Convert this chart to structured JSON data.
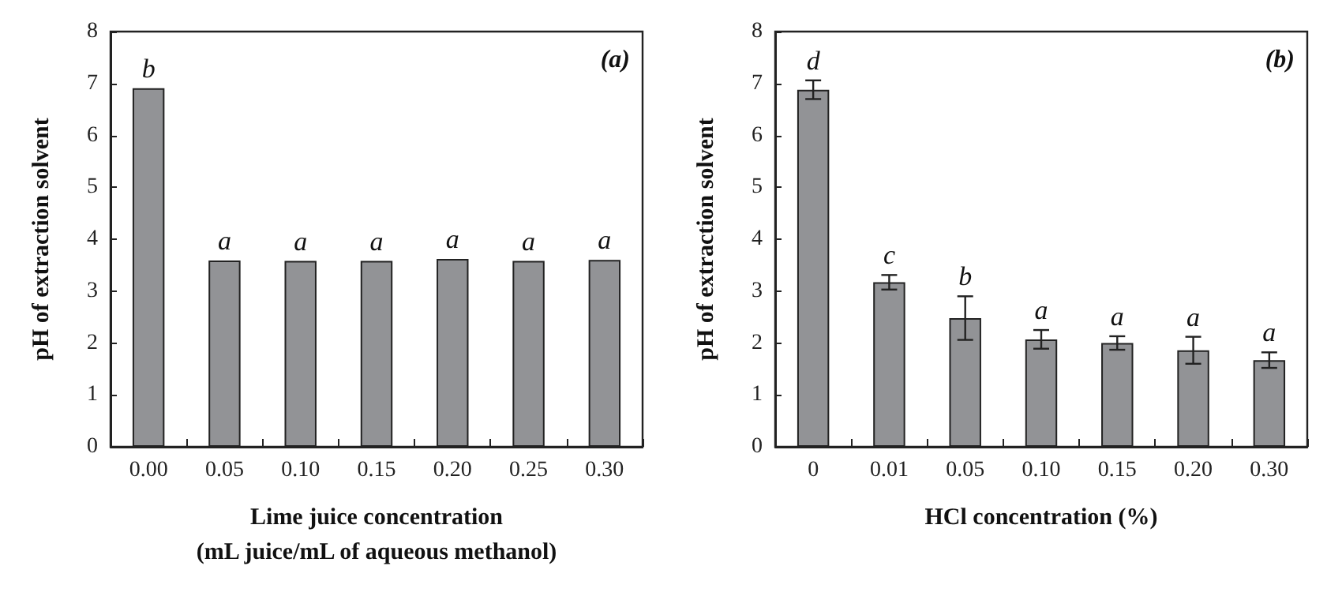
{
  "chart_data": [
    {
      "type": "bar",
      "xlabel": "Lime juice concentration\n(mL juice/mL of aqueous methanol)",
      "ylabel": "pH of extraction solvent",
      "categories": [
        "0.00",
        "0.05",
        "0.10",
        "0.15",
        "0.20",
        "0.25",
        "0.30"
      ],
      "series": [
        {
          "color": "#929396",
          "values": [
            6.91,
            3.59,
            3.58,
            3.58,
            3.62,
            3.58,
            3.6
          ]
        }
      ],
      "ylim": [
        0,
        8
      ],
      "yticks": [
        0,
        1,
        2,
        3,
        4,
        5,
        6,
        7,
        8
      ],
      "grid": false,
      "annotations": [
        "(a)",
        {
          "text": "b",
          "x": "0.00",
          "y": 6.91
        },
        {
          "text": "a",
          "x": "0.05",
          "y": 3.59
        },
        {
          "text": "a",
          "x": "0.10",
          "y": 3.58
        },
        {
          "text": "a",
          "x": "0.15",
          "y": 3.58
        },
        {
          "text": "a",
          "x": "0.20",
          "y": 3.62
        },
        {
          "text": "a",
          "x": "0.25",
          "y": 3.58
        },
        {
          "text": "a",
          "x": "0.30",
          "y": 3.6
        }
      ]
    },
    {
      "type": "bar",
      "xlabel": "HCl concentration (%)",
      "ylabel": "pH of extraction solvent",
      "categories": [
        "0",
        "0.01",
        "0.05",
        "0.10",
        "0.15",
        "0.20",
        "0.30"
      ],
      "series": [
        {
          "color": "#929396",
          "values": [
            6.88,
            3.17,
            2.48,
            2.07,
            2.0,
            1.86,
            1.67
          ],
          "errors": [
            0.18,
            0.14,
            0.42,
            0.18,
            0.13,
            0.26,
            0.15
          ]
        }
      ],
      "ylim": [
        0,
        8
      ],
      "yticks": [
        0,
        1,
        2,
        3,
        4,
        5,
        6,
        7,
        8
      ],
      "grid": false,
      "annotations": [
        "(b)",
        {
          "text": "d",
          "x": "0",
          "y": 7.06
        },
        {
          "text": "c",
          "x": "0.01",
          "y": 3.31
        },
        {
          "text": "b",
          "x": "0.05",
          "y": 2.9
        },
        {
          "text": "a",
          "x": "0.10",
          "y": 2.25
        },
        {
          "text": "a",
          "x": "0.15",
          "y": 2.13
        },
        {
          "text": "a",
          "x": "0.20",
          "y": 2.12
        },
        {
          "text": "a",
          "x": "0.30",
          "y": 1.82
        }
      ]
    }
  ]
}
